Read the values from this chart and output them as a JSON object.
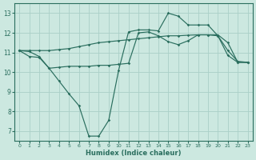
{
  "bg_color": "#cce8e0",
  "grid_color": "#aad0c8",
  "line_color": "#2a6e5e",
  "xlabel": "Humidex (Indice chaleur)",
  "xlim": [
    -0.5,
    23.5
  ],
  "ylim": [
    6.5,
    13.5
  ],
  "xticks": [
    0,
    1,
    2,
    3,
    4,
    5,
    6,
    7,
    8,
    9,
    10,
    11,
    12,
    13,
    14,
    15,
    16,
    17,
    18,
    19,
    20,
    21,
    22,
    23
  ],
  "yticks": [
    7,
    8,
    9,
    10,
    11,
    12,
    13
  ],
  "line1_x": [
    0,
    1,
    2,
    3,
    4,
    5,
    6,
    7,
    8,
    9,
    10,
    11,
    12,
    13,
    14,
    15,
    16,
    17,
    18,
    19,
    20,
    21,
    22,
    23
  ],
  "line1_y": [
    11.1,
    11.1,
    11.1,
    11.1,
    11.15,
    11.2,
    11.3,
    11.4,
    11.5,
    11.55,
    11.6,
    11.65,
    11.7,
    11.75,
    11.8,
    11.85,
    11.85,
    11.88,
    11.9,
    11.9,
    11.85,
    11.1,
    10.55,
    10.5
  ],
  "line2_x": [
    0,
    1,
    2,
    3,
    4,
    5,
    6,
    7,
    8,
    9,
    10,
    11,
    12,
    13,
    14,
    15,
    16,
    17,
    18,
    19,
    20,
    21,
    22,
    23
  ],
  "line2_y": [
    11.1,
    11.05,
    10.8,
    10.2,
    9.55,
    8.9,
    8.3,
    6.75,
    6.75,
    7.55,
    10.1,
    12.05,
    12.15,
    12.15,
    12.1,
    13.0,
    12.85,
    12.4,
    12.4,
    12.4,
    11.85,
    10.85,
    10.5,
    10.5
  ],
  "line3_x": [
    0,
    1,
    2,
    3,
    4,
    5,
    6,
    7,
    8,
    9,
    10,
    11,
    12,
    13,
    14,
    15,
    16,
    17,
    18,
    19,
    20,
    21,
    22,
    23
  ],
  "line3_y": [
    11.1,
    10.8,
    10.75,
    10.2,
    10.25,
    10.3,
    10.3,
    10.3,
    10.35,
    10.35,
    10.4,
    10.45,
    12.0,
    12.05,
    11.85,
    11.55,
    11.4,
    11.6,
    11.9,
    11.9,
    11.9,
    11.5,
    10.5,
    10.5
  ]
}
